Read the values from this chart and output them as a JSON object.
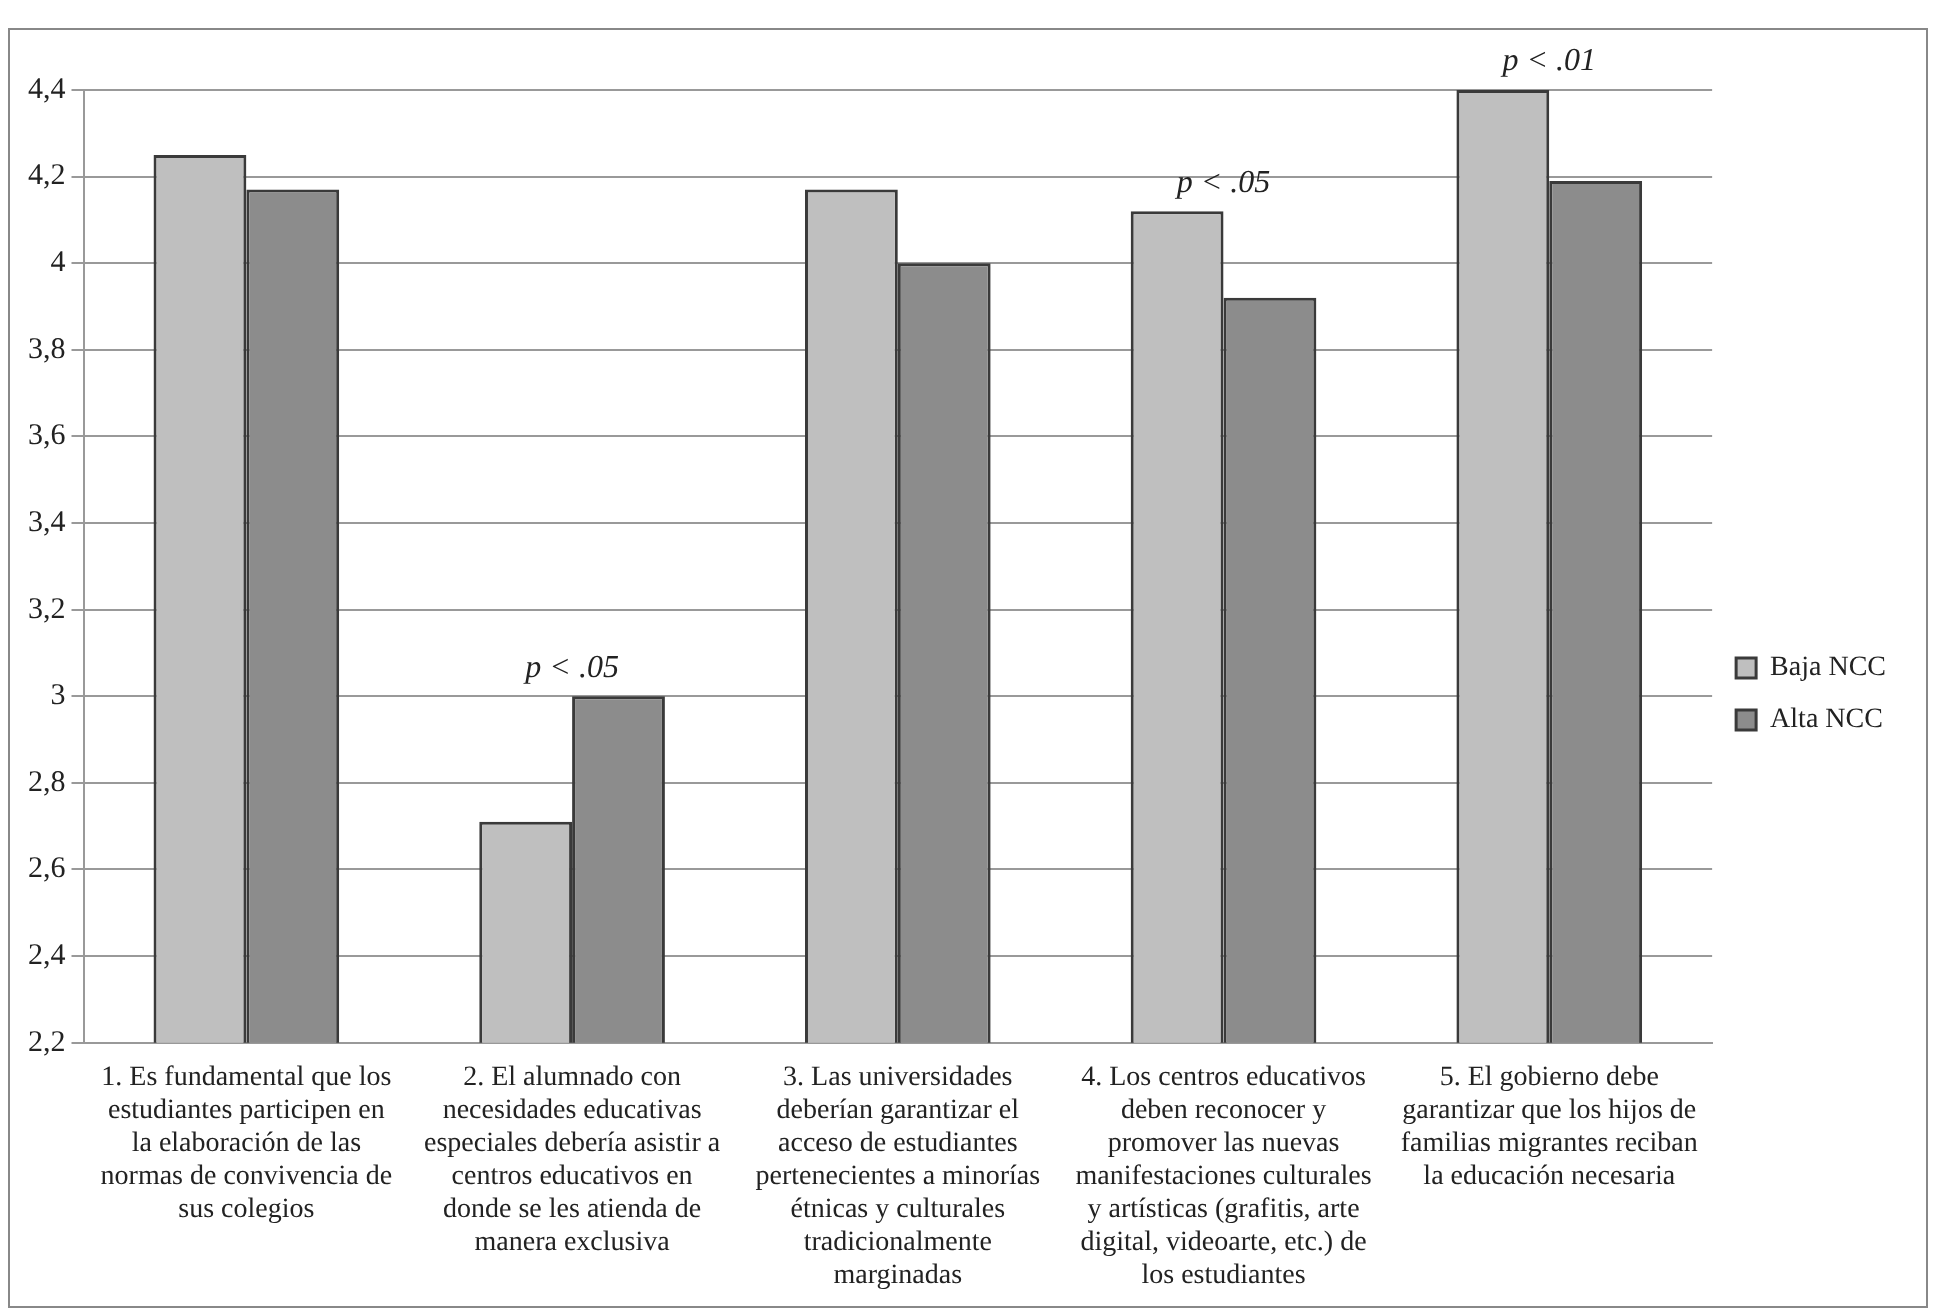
{
  "chart_data": {
    "type": "bar",
    "categories": [
      "1. Es fundamental que los estudiantes participen en la elaboración de las normas de convivencia de sus colegios",
      "2. El alumnado con necesidades educativas especiales debería asistir a centros educativos en donde se les atienda de manera exclusiva",
      "3. Las universidades deberían garantizar el acceso de estudiantes pertenecientes a minorías étnicas y culturales tradicionalmente marginadas",
      "4. Los centros educativos deben reconocer y promover las nuevas manifestaciones culturales y artísticas (grafitis, arte digital, videoarte, etc.) de los estudiantes",
      "5. El gobierno debe garantizar que los hijos de familias migrantes reciban la educación necesaria"
    ],
    "series": [
      {
        "name": "Baja NCC",
        "color": "#bfbfbf",
        "values": [
          4.25,
          2.71,
          4.17,
          4.12,
          4.4
        ]
      },
      {
        "name": "Alta NCC",
        "color": "#8c8c8c",
        "values": [
          4.17,
          3.0,
          4.0,
          3.92,
          4.19
        ]
      }
    ],
    "ylim": [
      2.2,
      4.4
    ],
    "yticks": [
      {
        "value": 2.2,
        "label": "2,2"
      },
      {
        "value": 2.4,
        "label": "2,4"
      },
      {
        "value": 2.6,
        "label": "2,6"
      },
      {
        "value": 2.8,
        "label": "2,8"
      },
      {
        "value": 3,
        "label": "3"
      },
      {
        "value": 3.2,
        "label": "3,2"
      },
      {
        "value": 3.4,
        "label": "3,4"
      },
      {
        "value": 3.6,
        "label": "3,6"
      },
      {
        "value": 3.8,
        "label": "3,8"
      },
      {
        "value": 4,
        "label": "4"
      },
      {
        "value": 4.2,
        "label": "4,2"
      },
      {
        "value": 4.4,
        "label": "4,4"
      }
    ],
    "grid": "y",
    "legend": "right",
    "annotations": [
      {
        "text": "p < .05",
        "x": "2. El alumnado con necesidades educativas especiales debería asistir a centros educativos en donde se les atienda de manera exclusiva",
        "y": 3.0
      },
      {
        "text": "p < .05",
        "x": "4. Los centros educativos deben reconocer y promover las nuevas manifestaciones culturales y artísticas (grafitis, arte digital, videoarte, etc.) de los estudiantes",
        "y": 4.12
      },
      {
        "text": "p < .01",
        "x": "5. El gobierno debe garantizar que los hijos de familias migrantes reciban la educación necesaria",
        "y": 4.4
      }
    ]
  }
}
